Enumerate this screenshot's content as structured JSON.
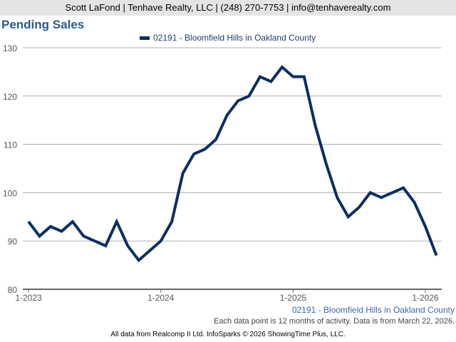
{
  "header": "Scott LaFond | Tenhave Realty, LLC | (248) 270-7753 | info@tenhaverealty.com",
  "footer": {
    "series_label": "02191 - Bloomfield Hills in Oakland County",
    "note": "Each data point is 12 months of activity. Data is from March 22, 2026.",
    "credit": "All data from Realcomp II Ltd. InfoSparks © 2026 ShowingTime Plus, LLC."
  },
  "chart_data": {
    "type": "line",
    "title": "Pending Sales",
    "legend": [
      "02191 - Bloomfield Hills in Oakland County"
    ],
    "legend_position": "top-center",
    "ylim": [
      80,
      130
    ],
    "yticks": [
      "80",
      "90",
      "100",
      "110",
      "120",
      "130"
    ],
    "xticks": [
      "1-2023",
      "1-2024",
      "1-2025",
      "1-2026"
    ],
    "grid": true,
    "line_color": "#0b2f63",
    "series": [
      {
        "name": "02191 - Bloomfield Hills in Oakland County",
        "values": [
          94,
          91,
          93,
          92,
          94,
          91,
          90,
          89,
          94,
          89,
          86,
          88,
          90,
          94,
          104,
          108,
          109,
          111,
          116,
          119,
          120,
          124,
          123,
          126,
          124,
          124,
          114,
          106,
          99,
          95,
          97,
          100,
          99,
          100,
          101,
          98,
          93,
          87
        ]
      }
    ]
  }
}
